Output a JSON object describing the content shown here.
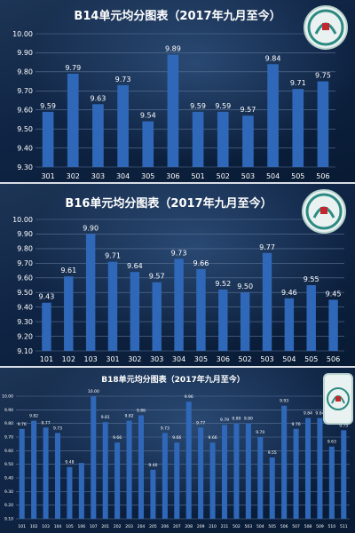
{
  "chart_data": [
    {
      "type": "bar",
      "title": "B14单元均分图表（2017年九月至今）",
      "categories": [
        "301",
        "302",
        "303",
        "304",
        "305",
        "306",
        "501",
        "502",
        "503",
        "504",
        "505",
        "506"
      ],
      "values": [
        9.59,
        9.79,
        9.63,
        9.73,
        9.54,
        9.89,
        9.59,
        9.59,
        9.57,
        9.84,
        9.71,
        9.75
      ],
      "ylim": [
        9.3,
        10.0
      ],
      "yticks": [
        "9.30",
        "9.40",
        "9.50",
        "9.60",
        "9.70",
        "9.80",
        "9.90",
        "10.00"
      ],
      "grid": true,
      "colors": {
        "bar": "#2f68b8",
        "grid": "#5b7397",
        "text": "#ffffff"
      }
    },
    {
      "type": "bar",
      "title": "B16单元均分图表（2017年九月至今）",
      "categories": [
        "101",
        "102",
        "103",
        "301",
        "302",
        "303",
        "304",
        "305",
        "306",
        "502",
        "503",
        "504",
        "505",
        "506"
      ],
      "values": [
        9.43,
        9.61,
        9.9,
        9.71,
        9.64,
        9.57,
        9.73,
        9.66,
        9.52,
        9.5,
        9.77,
        9.46,
        9.55,
        9.45
      ],
      "ylim": [
        9.1,
        10.0
      ],
      "yticks": [
        "9.10",
        "9.20",
        "9.30",
        "9.40",
        "9.50",
        "9.60",
        "9.70",
        "9.80",
        "9.90",
        "10.00"
      ],
      "grid": true,
      "colors": {
        "bar": "#2f68b8",
        "grid": "#5b7397",
        "text": "#ffffff"
      }
    },
    {
      "type": "bar",
      "title": "B18单元均分图表（2017年九月至今）",
      "categories": [
        "101",
        "102",
        "103",
        "104",
        "105",
        "106",
        "107",
        "201",
        "202",
        "203",
        "204",
        "205",
        "206",
        "207",
        "208",
        "209",
        "210",
        "211",
        "502",
        "503",
        "504",
        "505",
        "506",
        "507",
        "508",
        "509",
        "510",
        "511"
      ],
      "values": [
        9.76,
        9.82,
        9.77,
        9.73,
        9.48,
        9.51,
        10.0,
        9.81,
        9.66,
        9.82,
        9.86,
        9.46,
        9.73,
        9.66,
        9.96,
        9.77,
        9.66,
        9.79,
        9.8,
        9.8,
        9.7,
        9.55,
        9.93,
        9.76,
        9.84,
        9.84,
        9.63,
        9.75
      ],
      "value_labels": [
        "9.76",
        "9.82",
        "9.77",
        "9.73",
        "9.48",
        "",
        "10.00",
        "9.81",
        "9.66",
        "9.82",
        "9.86",
        "9.46",
        "9.73",
        "9.66",
        "9.96",
        "9.77",
        "9.66",
        "9.79",
        "9.80",
        "9.80",
        "9.70",
        "9.55",
        "9.93",
        "9.76",
        "9.84",
        "9.84",
        "9.63",
        "9.75"
      ],
      "ylim": [
        9.1,
        10.0
      ],
      "yticks": [
        "9.10",
        "9.20",
        "9.30",
        "9.40",
        "9.50",
        "9.60",
        "9.70",
        "9.80",
        "9.90",
        "10.00"
      ],
      "grid": true,
      "colors": {
        "bar": "#2f68b8",
        "grid": "#5b7397",
        "text": "#ffffff"
      }
    }
  ],
  "logo": {
    "name": "school-emblem",
    "colors": {
      "ring": "#2d8a82",
      "core": "#c0282d"
    }
  }
}
